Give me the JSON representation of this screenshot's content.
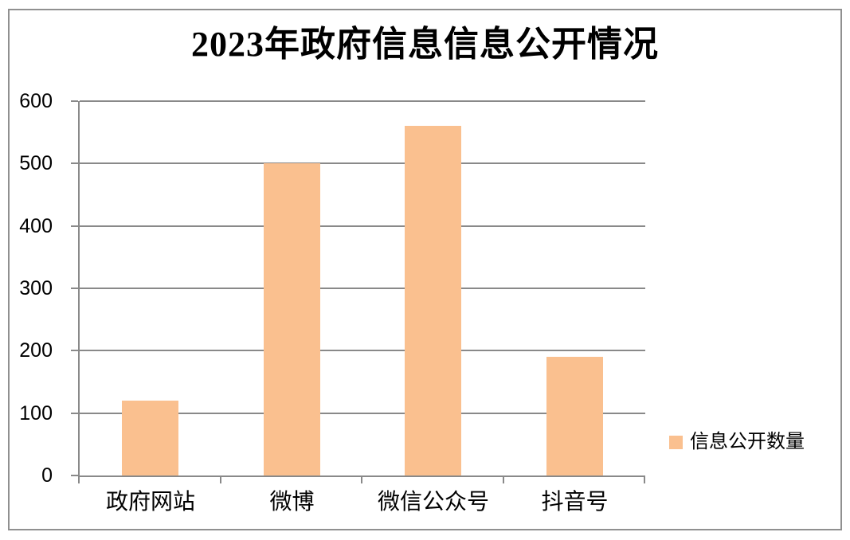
{
  "chart_data": {
    "type": "bar",
    "title": "2023年政府信息信息公开情况",
    "categories": [
      "政府网站",
      "微博",
      "微信公众号",
      "抖音号"
    ],
    "series": [
      {
        "name": "信息公开数量",
        "values": [
          120,
          500,
          560,
          190
        ]
      }
    ],
    "xlabel": "",
    "ylabel": "",
    "ylim": [
      0,
      600
    ],
    "yticks": [
      0,
      100,
      200,
      300,
      400,
      500,
      600
    ],
    "grid": "horizontal-major",
    "legend_position": "right",
    "colors": {
      "bar_fill": "#FAC08F",
      "axis_and_grid": "#898989",
      "chart_border": "#909090",
      "text": "#000000",
      "background": "#FFFFFF"
    }
  },
  "legend": {
    "label": "信息公开数量"
  }
}
